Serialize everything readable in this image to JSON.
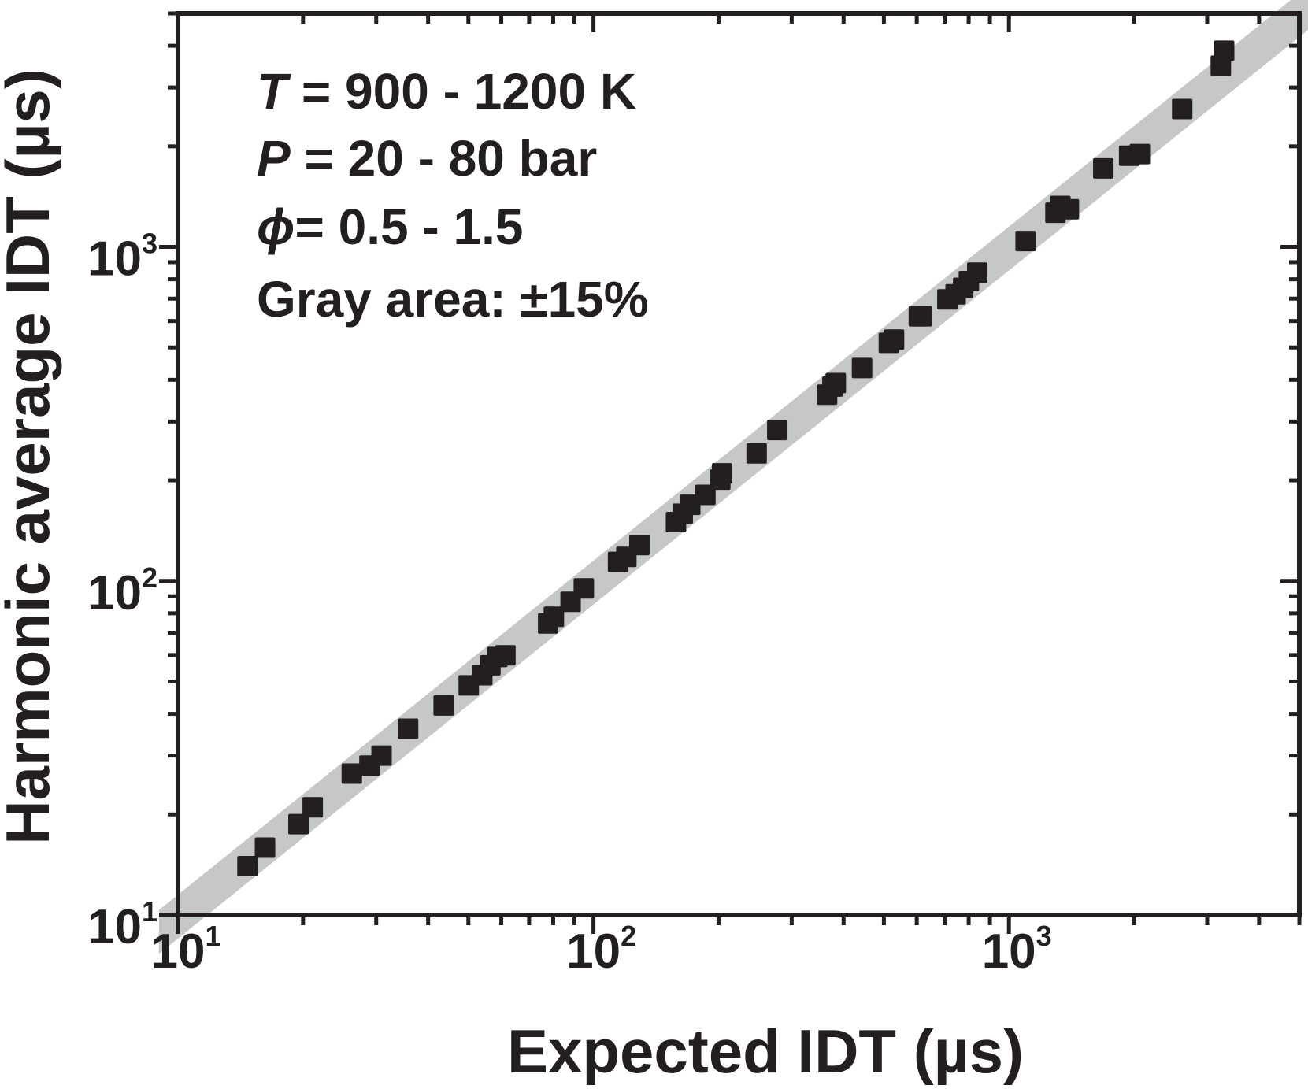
{
  "chart_data": {
    "type": "scatter",
    "title": "",
    "xlabel": "Expected IDT (µs)",
    "ylabel": "Harmonic average IDT (µs)",
    "xscale": "log",
    "yscale": "log",
    "xlim": [
      10,
      5000
    ],
    "ylim": [
      10,
      5000
    ],
    "x_ticks": [
      {
        "base": "10",
        "exp": "1",
        "value": 10
      },
      {
        "base": "10",
        "exp": "2",
        "value": 100
      },
      {
        "base": "10",
        "exp": "3",
        "value": 1000
      }
    ],
    "y_ticks": [
      {
        "base": "10",
        "exp": "1",
        "value": 10
      },
      {
        "base": "10",
        "exp": "2",
        "value": 100
      },
      {
        "base": "10",
        "exp": "3",
        "value": 1000
      }
    ],
    "band": {
      "description_label": "Gray area: ±15%",
      "fraction": 0.15,
      "color": "#c6c7c8"
    },
    "marker_color": "#231f20",
    "annotations": [
      {
        "var": "T",
        "text": " = 900 - 1200 K"
      },
      {
        "var": "P",
        "text": " = 20 - 80 bar"
      },
      {
        "var": "ϕ",
        "text": "= 0.5 - 1.5"
      },
      {
        "var": "",
        "text": "Gray area: ±15%"
      }
    ],
    "points": [
      [
        14.7,
        14.0
      ],
      [
        16.2,
        15.9
      ],
      [
        19.5,
        18.7
      ],
      [
        21.1,
        21.0
      ],
      [
        26.2,
        26.5
      ],
      [
        28.9,
        28.0
      ],
      [
        30.9,
        30.0
      ],
      [
        35.8,
        36.1
      ],
      [
        43.6,
        42.4
      ],
      [
        50.1,
        48.7
      ],
      [
        54.0,
        52.2
      ],
      [
        56.5,
        55.9
      ],
      [
        58.7,
        59.2
      ],
      [
        61.4,
        59.9
      ],
      [
        77.8,
        74.6
      ],
      [
        80.3,
        78.1
      ],
      [
        88.1,
        86.6
      ],
      [
        94.8,
        95.0
      ],
      [
        114.6,
        114
      ],
      [
        120,
        118
      ],
      [
        129,
        128
      ],
      [
        158,
        150
      ],
      [
        164,
        159
      ],
      [
        171,
        169
      ],
      [
        186,
        181
      ],
      [
        202,
        201
      ],
      [
        204,
        210
      ],
      [
        247,
        241
      ],
      [
        277,
        283
      ],
      [
        365,
        361
      ],
      [
        376,
        382
      ],
      [
        383,
        391
      ],
      [
        443,
        434
      ],
      [
        514,
        516
      ],
      [
        529,
        528
      ],
      [
        607,
        620
      ],
      [
        618,
        620
      ],
      [
        711,
        696
      ],
      [
        744,
        721
      ],
      [
        776,
        754
      ],
      [
        801,
        790
      ],
      [
        839,
        837
      ],
      [
        1097,
        1041
      ],
      [
        1294,
        1266
      ],
      [
        1330,
        1326
      ],
      [
        1394,
        1296
      ],
      [
        1687,
        1718
      ],
      [
        1947,
        1874
      ],
      [
        2066,
        1896
      ],
      [
        2612,
        2585
      ],
      [
        3236,
        3487
      ],
      [
        3296,
        3867
      ]
    ]
  }
}
